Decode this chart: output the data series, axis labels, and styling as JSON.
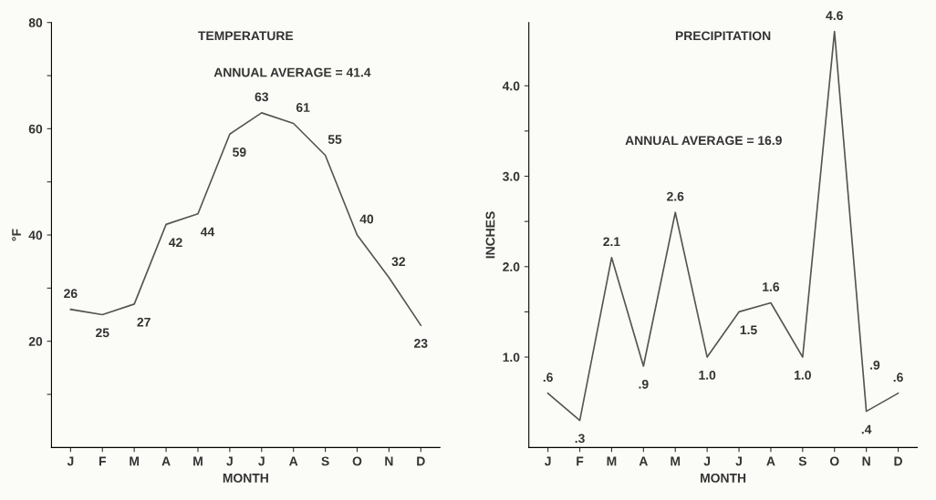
{
  "chart_data": [
    {
      "type": "line",
      "title": "TEMPERATURE",
      "xlabel": "MONTH",
      "ylabel": "°F",
      "categories": [
        "J",
        "F",
        "M",
        "A",
        "M",
        "J",
        "J",
        "A",
        "S",
        "O",
        "N",
        "D"
      ],
      "series": [
        {
          "color": "#555555",
          "values": [
            26,
            25,
            27,
            42,
            44,
            59,
            63,
            61,
            55,
            40,
            32,
            23
          ]
        }
      ],
      "data_labels": true,
      "annotations": [
        "ANNUAL AVERAGE = 41.4"
      ],
      "ylim": [
        0,
        80
      ],
      "yticks": [
        {
          "value": 10,
          "label": null
        },
        20,
        {
          "value": 30,
          "label": null
        },
        40,
        {
          "value": 50,
          "label": null
        },
        60,
        {
          "value": 70,
          "label": null
        },
        80
      ],
      "grid": false,
      "legend": false,
      "marker": "none",
      "line_style": "solid"
    },
    {
      "type": "line",
      "title": "PRECIPITATION",
      "xlabel": "MONTH",
      "ylabel": "INCHES",
      "categories": [
        "J",
        "F",
        "M",
        "A",
        "M",
        "J",
        "J",
        "A",
        "S",
        "O",
        "N",
        "D"
      ],
      "series": [
        {
          "color": "#555555",
          "values": [
            0.6,
            0.3,
            2.1,
            0.9,
            2.6,
            1.0,
            1.5,
            1.6,
            1.0,
            4.6,
            0.4,
            0.6
          ],
          "value_labels": [
            ".6",
            ".3",
            "2.1",
            ".9",
            "2.6",
            "1.0",
            "1.5",
            "1.6",
            "1.0",
            "4.6",
            ".4",
            ".6"
          ]
        }
      ],
      "annotations": [
        "ANNUAL AVERAGE = 16.9",
        {
          "text": ".9",
          "x": "N",
          "y": 0.9
        }
      ],
      "ylim": [
        0,
        4.7
      ],
      "yticks": [
        {
          "value": 1.0,
          "label": "1.0"
        },
        {
          "value": 1.5,
          "label": null
        },
        {
          "value": 2.0,
          "label": "2.0"
        },
        {
          "value": 2.5,
          "label": null
        },
        {
          "value": 3.0,
          "label": "3.0"
        },
        {
          "value": 3.5,
          "label": null
        },
        {
          "value": 4.0,
          "label": "4.0"
        }
      ],
      "grid": false,
      "legend": false,
      "marker": "none",
      "line_style": "solid"
    }
  ]
}
